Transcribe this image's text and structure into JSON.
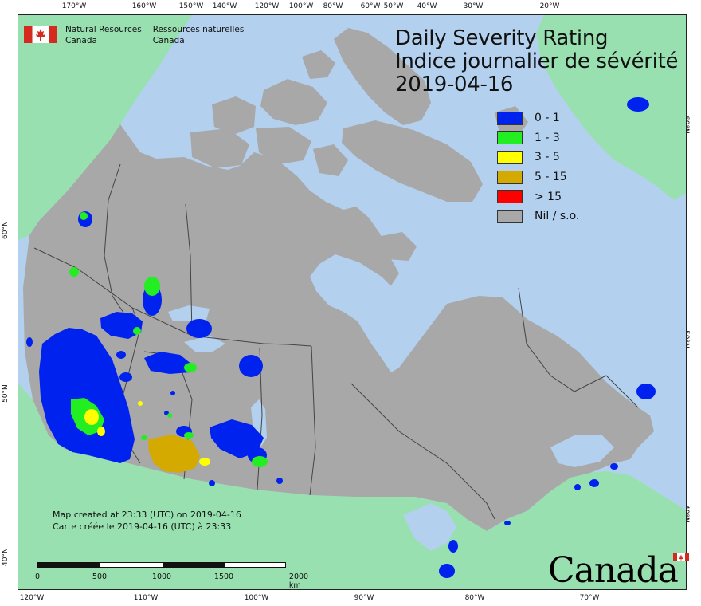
{
  "title": {
    "en": "Daily Severity Rating",
    "fr": "Indice journalier de sévérité",
    "date": "2019-04-16"
  },
  "agency": {
    "en_line1": "Natural Resources",
    "en_line2": "Canada",
    "fr_line1": "Ressources naturelles",
    "fr_line2": "Canada"
  },
  "legend": [
    {
      "label": "0 - 1",
      "color": "#0022ee"
    },
    {
      "label": "1 - 3",
      "color": "#22ee22"
    },
    {
      "label": "3 - 5",
      "color": "#ffff00"
    },
    {
      "label": "5 - 15",
      "color": "#d4aa00"
    },
    {
      "label": "> 15",
      "color": "#ff0000"
    },
    {
      "label": "Nil / s.o.",
      "color": "#a8a8a8"
    }
  ],
  "colors": {
    "ocean": "#b3d1ef",
    "foreign_land": "#98e0b0",
    "canada_nil": "#a8a8a8",
    "province_border": "#444444"
  },
  "created": {
    "en": "Map created at 23:33 (UTC) on 2019-04-16",
    "fr": "Carte créée le 2019-04-16 (UTC) à 23:33"
  },
  "scale": {
    "labels": [
      "0",
      "500",
      "1000",
      "1500",
      "2000 km"
    ]
  },
  "graticule": {
    "top": [
      "170°W",
      "160°W",
      "150°W",
      "140°W",
      "120°W",
      "100°W",
      "80°W",
      "60°W",
      "50°W",
      "40°W",
      "30°W",
      "20°W"
    ],
    "bottom": [
      "120°W",
      "110°W",
      "100°W",
      "90°W",
      "80°W",
      "70°W"
    ],
    "left": [
      "60°N",
      "50°N",
      "40°N"
    ],
    "right": [
      "60°N",
      "50°N",
      "40°N"
    ]
  },
  "wordmark": "Canada"
}
